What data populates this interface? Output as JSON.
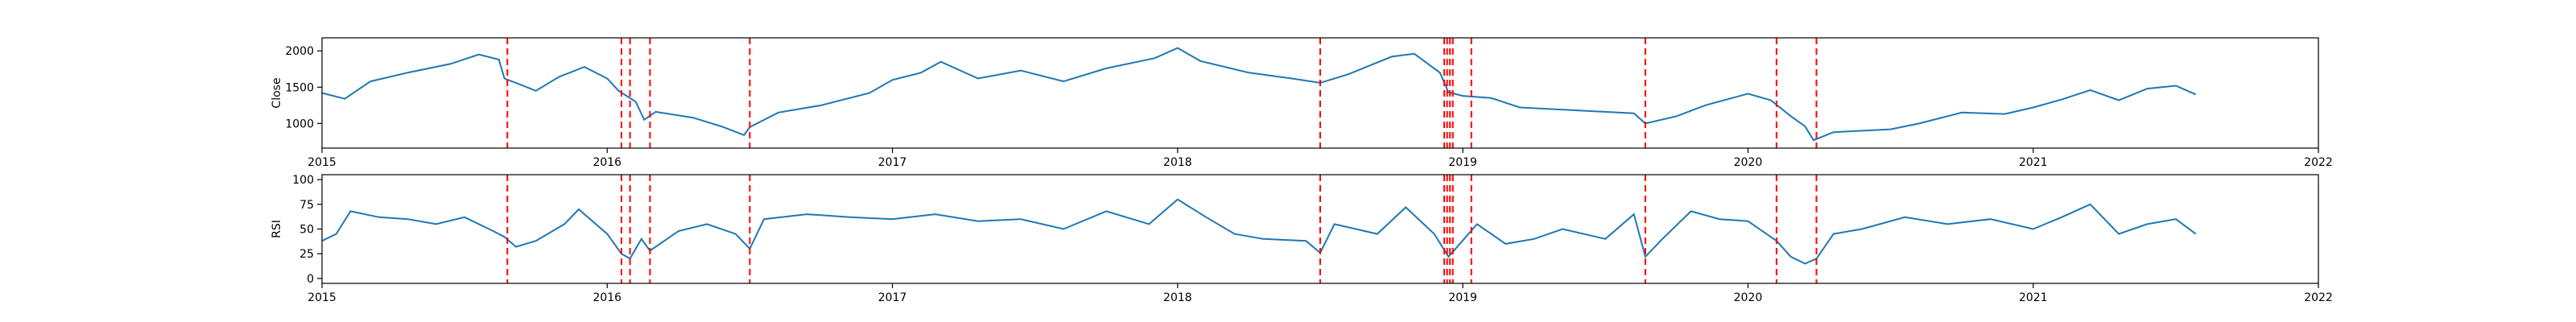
{
  "chart_data": [
    {
      "type": "line",
      "ylabel": "Close",
      "xlim": [
        2015,
        2022
      ],
      "ylim": [
        660,
        2180
      ],
      "xticks": [
        2015,
        2016,
        2017,
        2018,
        2019,
        2020,
        2021,
        2022
      ],
      "xtick_labels": [
        "2015",
        "2016",
        "2017",
        "2018",
        "2019",
        "2020",
        "2021",
        "2022"
      ],
      "yticks": [
        1000,
        1500,
        2000
      ],
      "ytick_labels": [
        "1000",
        "1500",
        "2000"
      ],
      "line_color": "#1f77b4",
      "marker_color": "#ff0000",
      "series": [
        {
          "x": [
            2015.0,
            2015.08,
            2015.17,
            2015.3,
            2015.45,
            2015.55,
            2015.62,
            2015.64,
            2015.68,
            2015.75,
            2015.83,
            2015.92,
            2016.0,
            2016.04,
            2016.1,
            2016.13,
            2016.17,
            2016.3,
            2016.4,
            2016.48,
            2016.5,
            2016.6,
            2016.75,
            2016.92,
            2017.0,
            2017.1,
            2017.17,
            2017.3,
            2017.45,
            2017.6,
            2017.75,
            2017.92,
            2018.0,
            2018.08,
            2018.25,
            2018.4,
            2018.5,
            2018.6,
            2018.75,
            2018.83,
            2018.92,
            2018.95,
            2019.0,
            2019.1,
            2019.2,
            2019.4,
            2019.6,
            2019.64,
            2019.75,
            2019.85,
            2020.0,
            2020.08,
            2020.15,
            2020.2,
            2020.23,
            2020.3,
            2020.5,
            2020.6,
            2020.75,
            2020.9,
            2021.0,
            2021.1,
            2021.2,
            2021.3,
            2021.4,
            2021.5,
            2021.57
          ],
          "y": [
            1420,
            1340,
            1580,
            1700,
            1820,
            1950,
            1880,
            1620,
            1560,
            1450,
            1640,
            1780,
            1620,
            1450,
            1300,
            1050,
            1160,
            1080,
            960,
            840,
            950,
            1150,
            1250,
            1420,
            1600,
            1700,
            1850,
            1620,
            1730,
            1580,
            1760,
            1900,
            2040,
            1860,
            1700,
            1620,
            1560,
            1680,
            1920,
            1960,
            1700,
            1430,
            1380,
            1350,
            1220,
            1180,
            1140,
            1000,
            1100,
            1250,
            1410,
            1320,
            1100,
            960,
            770,
            880,
            920,
            1000,
            1150,
            1130,
            1220,
            1330,
            1460,
            1320,
            1480,
            1520,
            1400
          ]
        }
      ],
      "event_dates": [
        2015.65,
        2016.05,
        2016.08,
        2016.15,
        2016.5,
        2018.5,
        2018.935,
        2018.945,
        2018.955,
        2018.965,
        2019.03,
        2019.64,
        2020.1,
        2020.24
      ]
    },
    {
      "type": "line",
      "ylabel": "RSI",
      "xlim": [
        2015,
        2022
      ],
      "ylim": [
        -5,
        105
      ],
      "xticks": [
        2015,
        2016,
        2017,
        2018,
        2019,
        2020,
        2021,
        2022
      ],
      "xtick_labels": [
        "2015",
        "2016",
        "2017",
        "2018",
        "2019",
        "2020",
        "2021",
        "2022"
      ],
      "yticks": [
        0,
        25,
        50,
        75,
        100
      ],
      "ytick_labels": [
        "0",
        "25",
        "50",
        "75",
        "100"
      ],
      "line_color": "#1f77b4",
      "marker_color": "#ff0000",
      "series": [
        {
          "x": [
            2015.0,
            2015.05,
            2015.1,
            2015.2,
            2015.3,
            2015.4,
            2015.5,
            2015.6,
            2015.64,
            2015.68,
            2015.75,
            2015.85,
            2015.9,
            2016.0,
            2016.05,
            2016.08,
            2016.12,
            2016.15,
            2016.25,
            2016.35,
            2016.45,
            2016.5,
            2016.55,
            2016.7,
            2016.85,
            2017.0,
            2017.15,
            2017.3,
            2017.45,
            2017.6,
            2017.75,
            2017.9,
            2018.0,
            2018.1,
            2018.2,
            2018.3,
            2018.45,
            2018.5,
            2018.55,
            2018.7,
            2018.8,
            2018.9,
            2018.95,
            2019.05,
            2019.15,
            2019.25,
            2019.35,
            2019.5,
            2019.6,
            2019.64,
            2019.7,
            2019.8,
            2019.9,
            2020.0,
            2020.1,
            2020.15,
            2020.2,
            2020.24,
            2020.3,
            2020.4,
            2020.55,
            2020.7,
            2020.85,
            2021.0,
            2021.1,
            2021.2,
            2021.3,
            2021.4,
            2021.5,
            2021.57
          ],
          "y": [
            38,
            45,
            68,
            62,
            60,
            55,
            62,
            48,
            42,
            32,
            38,
            55,
            70,
            45,
            25,
            20,
            40,
            28,
            48,
            55,
            45,
            30,
            60,
            65,
            62,
            60,
            65,
            58,
            60,
            50,
            68,
            55,
            80,
            62,
            45,
            40,
            38,
            26,
            55,
            45,
            72,
            45,
            22,
            55,
            35,
            40,
            50,
            40,
            65,
            22,
            40,
            68,
            60,
            58,
            38,
            22,
            15,
            20,
            45,
            50,
            62,
            55,
            60,
            50,
            62,
            75,
            45,
            55,
            60,
            45
          ]
        }
      ],
      "event_dates": [
        2015.65,
        2016.05,
        2016.08,
        2016.15,
        2016.5,
        2018.5,
        2018.935,
        2018.945,
        2018.955,
        2018.965,
        2019.03,
        2019.64,
        2020.1,
        2020.24
      ]
    }
  ]
}
